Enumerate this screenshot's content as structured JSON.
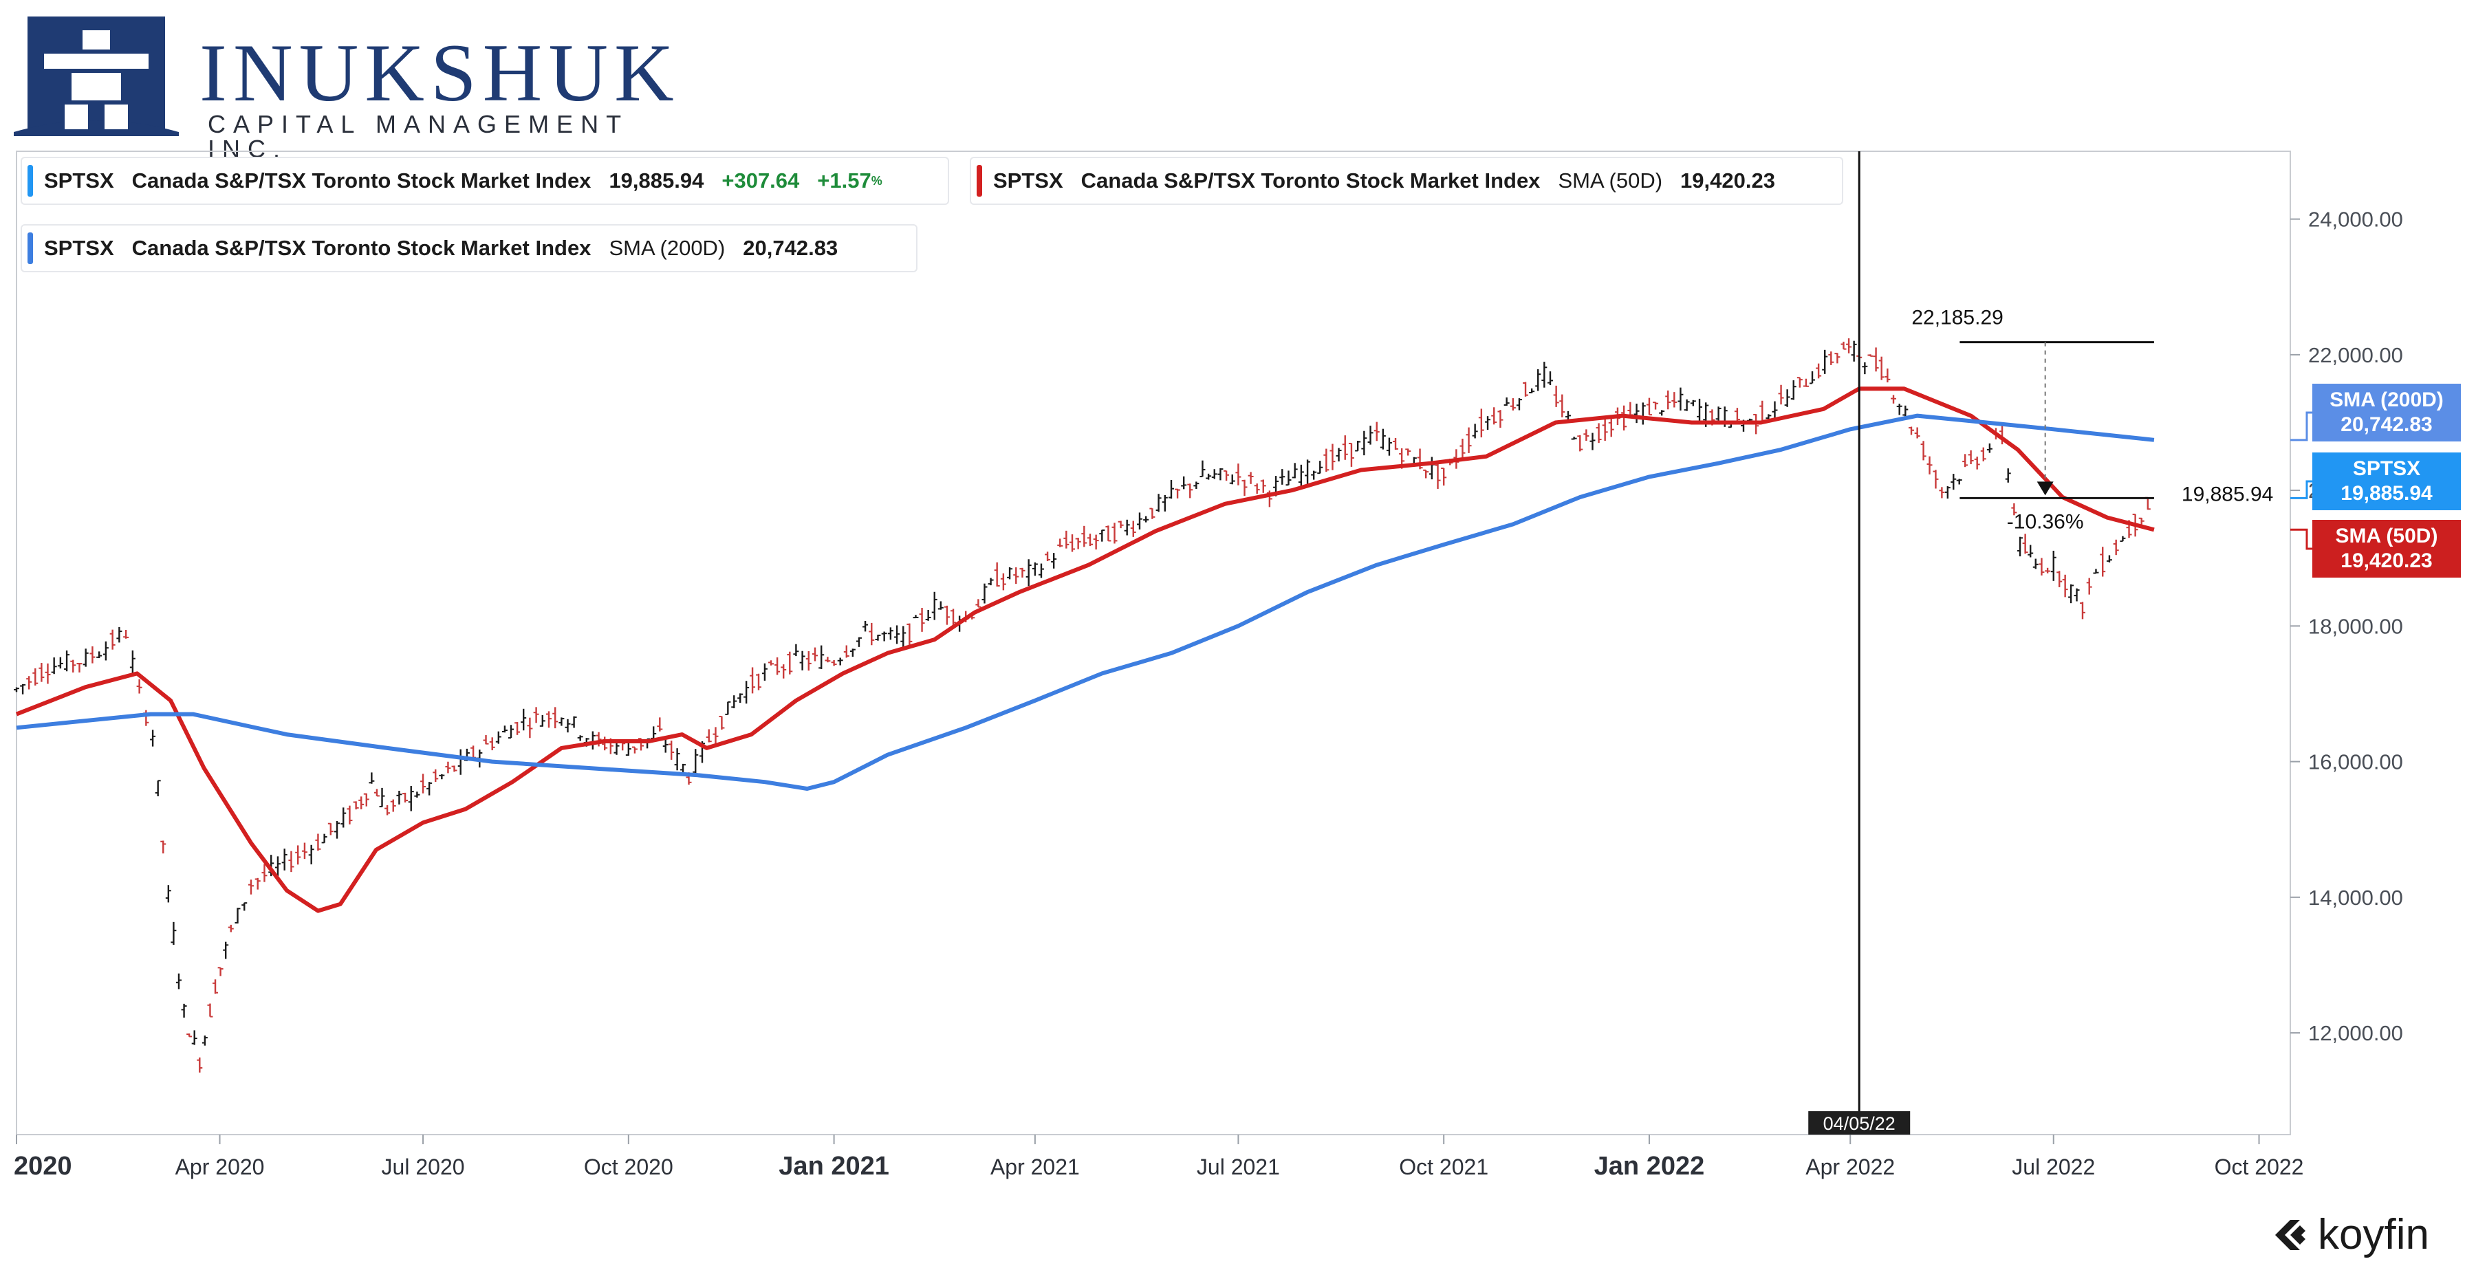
{
  "brand": {
    "name": "INUKSHUK",
    "subtitle": "CAPITAL MANAGEMENT INC."
  },
  "legend": {
    "price": {
      "ticker": "SPTSX",
      "name": "Canada S&P/TSX Toronto Stock Market Index",
      "value": "19,885.94",
      "change": "+307.64",
      "change_pct": "+1.57",
      "pct_sign": "%",
      "color": "#2196f3"
    },
    "sma50": {
      "ticker": "SPTSX",
      "name": "Canada S&P/TSX Toronto Stock Market Index",
      "label": "SMA (50D)",
      "value": "19,420.23",
      "color": "#d32020"
    },
    "sma200": {
      "ticker": "SPTSX",
      "name": "Canada S&P/TSX Toronto Stock Market Index",
      "label": "SMA (200D)",
      "value": "20,742.83",
      "color": "#3d7ee0"
    }
  },
  "tags": {
    "sma200": {
      "label": "SMA (200D)",
      "value": "20,742.83",
      "color": "#5b8ee6"
    },
    "price": {
      "label": "SPTSX",
      "value": "19,885.94",
      "color": "#2196f3"
    },
    "sma50": {
      "label": "SMA (50D)",
      "value": "19,420.23",
      "color": "#cc1f1f"
    }
  },
  "annotations": {
    "high_value": "22,185.29",
    "current_value": "19,885.94",
    "drawdown": "-10.36%",
    "crosshair_date": "04/05/22"
  },
  "footer": {
    "brand": "koyfin"
  },
  "chart_data": {
    "type": "line",
    "x_axis": {
      "start": "2020-01-01",
      "end": "2022-10-15",
      "ticks": [
        {
          "date": "2020-01-01",
          "label": "2020",
          "bold": true
        },
        {
          "date": "2020-04-01",
          "label": "Apr 2020"
        },
        {
          "date": "2020-07-01",
          "label": "Jul 2020"
        },
        {
          "date": "2020-10-01",
          "label": "Oct 2020"
        },
        {
          "date": "2021-01-01",
          "label": "Jan 2021",
          "bold": true
        },
        {
          "date": "2021-04-01",
          "label": "Apr 2021"
        },
        {
          "date": "2021-07-01",
          "label": "Jul 2021"
        },
        {
          "date": "2021-10-01",
          "label": "Oct 2021"
        },
        {
          "date": "2022-01-01",
          "label": "Jan 2022",
          "bold": true
        },
        {
          "date": "2022-04-01",
          "label": "Apr 2022"
        },
        {
          "date": "2022-07-01",
          "label": "Jul 2022"
        },
        {
          "date": "2022-10-01",
          "label": "Oct 2022"
        }
      ]
    },
    "y_axis": {
      "min": 10500,
      "max": 25000,
      "ticks": [
        {
          "value": 12000,
          "label": "12,000.00"
        },
        {
          "value": 14000,
          "label": "14,000.00"
        },
        {
          "value": 16000,
          "label": "16,000.00"
        },
        {
          "value": 18000,
          "label": "18,000.00"
        },
        {
          "value": 20000,
          "label": "20,000.00"
        },
        {
          "value": 22000,
          "label": "22,000.00"
        },
        {
          "value": 24000,
          "label": "24,000.00"
        }
      ]
    },
    "series": [
      {
        "name": "SPTSX",
        "style": "ohlc",
        "color": "#1a1a1a",
        "down_color": "#c93a3a",
        "points": [
          [
            "2020-01-01",
            17063
          ],
          [
            "2020-01-15",
            17400
          ],
          [
            "2020-02-01",
            17500
          ],
          [
            "2020-02-19",
            17900
          ],
          [
            "2020-02-25",
            17000
          ],
          [
            "2020-03-02",
            16400
          ],
          [
            "2020-03-09",
            14000
          ],
          [
            "2020-03-16",
            12300
          ],
          [
            "2020-03-23",
            11600
          ],
          [
            "2020-03-30",
            12700
          ],
          [
            "2020-04-06",
            13500
          ],
          [
            "2020-04-15",
            14200
          ],
          [
            "2020-04-30",
            14500
          ],
          [
            "2020-05-15",
            14800
          ],
          [
            "2020-06-01",
            15300
          ],
          [
            "2020-06-08",
            15700
          ],
          [
            "2020-06-15",
            15300
          ],
          [
            "2020-07-01",
            15600
          ],
          [
            "2020-07-15",
            15900
          ],
          [
            "2020-08-01",
            16300
          ],
          [
            "2020-08-15",
            16600
          ],
          [
            "2020-09-01",
            16700
          ],
          [
            "2020-09-15",
            16300
          ],
          [
            "2020-10-01",
            16200
          ],
          [
            "2020-10-15",
            16400
          ],
          [
            "2020-10-28",
            15800
          ],
          [
            "2020-11-09",
            16500
          ],
          [
            "2020-11-20",
            17000
          ],
          [
            "2020-12-01",
            17300
          ],
          [
            "2020-12-15",
            17500
          ],
          [
            "2021-01-01",
            17500
          ],
          [
            "2021-01-15",
            17900
          ],
          [
            "2021-02-01",
            17800
          ],
          [
            "2021-02-15",
            18300
          ],
          [
            "2021-03-01",
            18100
          ],
          [
            "2021-03-15",
            18700
          ],
          [
            "2021-04-01",
            18800
          ],
          [
            "2021-04-15",
            19200
          ],
          [
            "2021-05-01",
            19300
          ],
          [
            "2021-05-15",
            19500
          ],
          [
            "2021-06-01",
            19900
          ],
          [
            "2021-06-15",
            20200
          ],
          [
            "2021-07-01",
            20200
          ],
          [
            "2021-07-15",
            20000
          ],
          [
            "2021-08-01",
            20300
          ],
          [
            "2021-08-15",
            20500
          ],
          [
            "2021-09-01",
            20800
          ],
          [
            "2021-09-15",
            20500
          ],
          [
            "2021-10-01",
            20200
          ],
          [
            "2021-10-15",
            20900
          ],
          [
            "2021-11-01",
            21300
          ],
          [
            "2021-11-15",
            21700
          ],
          [
            "2021-12-01",
            20700
          ],
          [
            "2021-12-15",
            21000
          ],
          [
            "2022-01-01",
            21200
          ],
          [
            "2022-01-15",
            21300
          ],
          [
            "2022-02-01",
            21100
          ],
          [
            "2022-02-15",
            21000
          ],
          [
            "2022-03-01",
            21300
          ],
          [
            "2022-03-15",
            21700
          ],
          [
            "2022-03-29",
            22100
          ],
          [
            "2022-04-05",
            22000
          ],
          [
            "2022-04-15",
            21800
          ],
          [
            "2022-05-01",
            20800
          ],
          [
            "2022-05-12",
            20000
          ],
          [
            "2022-05-25",
            20400
          ],
          [
            "2022-06-08",
            20800
          ],
          [
            "2022-06-16",
            19200
          ],
          [
            "2022-06-23",
            18900
          ],
          [
            "2022-07-01",
            18900
          ],
          [
            "2022-07-14",
            18300
          ],
          [
            "2022-07-20",
            18800
          ],
          [
            "2022-08-01",
            19300
          ],
          [
            "2022-08-15",
            19885.94
          ]
        ]
      },
      {
        "name": "SMA (50D)",
        "style": "line",
        "color": "#d32020",
        "points": [
          [
            "2020-01-01",
            16700
          ],
          [
            "2020-02-01",
            17100
          ],
          [
            "2020-02-24",
            17300
          ],
          [
            "2020-03-10",
            16900
          ],
          [
            "2020-03-25",
            15900
          ],
          [
            "2020-04-15",
            14800
          ],
          [
            "2020-05-01",
            14100
          ],
          [
            "2020-05-15",
            13800
          ],
          [
            "2020-05-25",
            13900
          ],
          [
            "2020-06-10",
            14700
          ],
          [
            "2020-07-01",
            15100
          ],
          [
            "2020-07-20",
            15300
          ],
          [
            "2020-08-10",
            15700
          ],
          [
            "2020-09-01",
            16200
          ],
          [
            "2020-09-20",
            16300
          ],
          [
            "2020-10-10",
            16300
          ],
          [
            "2020-10-25",
            16400
          ],
          [
            "2020-11-05",
            16200
          ],
          [
            "2020-11-25",
            16400
          ],
          [
            "2020-12-15",
            16900
          ],
          [
            "2021-01-05",
            17300
          ],
          [
            "2021-01-25",
            17600
          ],
          [
            "2021-02-15",
            17800
          ],
          [
            "2021-03-05",
            18200
          ],
          [
            "2021-03-25",
            18500
          ],
          [
            "2021-04-25",
            18900
          ],
          [
            "2021-05-25",
            19400
          ],
          [
            "2021-06-25",
            19800
          ],
          [
            "2021-07-25",
            20000
          ],
          [
            "2021-08-25",
            20300
          ],
          [
            "2021-09-25",
            20400
          ],
          [
            "2021-10-20",
            20500
          ],
          [
            "2021-11-20",
            21000
          ],
          [
            "2021-12-20",
            21100
          ],
          [
            "2022-01-20",
            21000
          ],
          [
            "2022-02-20",
            21000
          ],
          [
            "2022-03-20",
            21200
          ],
          [
            "2022-04-05",
            21500
          ],
          [
            "2022-04-25",
            21500
          ],
          [
            "2022-05-25",
            21100
          ],
          [
            "2022-06-15",
            20600
          ],
          [
            "2022-07-05",
            19900
          ],
          [
            "2022-07-25",
            19600
          ],
          [
            "2022-08-15",
            19420.23
          ]
        ]
      },
      {
        "name": "SMA (200D)",
        "style": "line",
        "color": "#3d7ee0",
        "points": [
          [
            "2020-01-01",
            16500
          ],
          [
            "2020-03-01",
            16700
          ],
          [
            "2020-03-20",
            16700
          ],
          [
            "2020-05-01",
            16400
          ],
          [
            "2020-06-15",
            16200
          ],
          [
            "2020-08-01",
            16000
          ],
          [
            "2020-09-15",
            15900
          ],
          [
            "2020-11-01",
            15800
          ],
          [
            "2020-12-01",
            15700
          ],
          [
            "2020-12-20",
            15600
          ],
          [
            "2021-01-01",
            15700
          ],
          [
            "2021-01-25",
            16100
          ],
          [
            "2021-03-01",
            16500
          ],
          [
            "2021-04-01",
            16900
          ],
          [
            "2021-05-01",
            17300
          ],
          [
            "2021-06-01",
            17600
          ],
          [
            "2021-07-01",
            18000
          ],
          [
            "2021-08-01",
            18500
          ],
          [
            "2021-09-01",
            18900
          ],
          [
            "2021-10-01",
            19200
          ],
          [
            "2021-11-01",
            19500
          ],
          [
            "2021-12-01",
            19900
          ],
          [
            "2022-01-01",
            20200
          ],
          [
            "2022-02-01",
            20400
          ],
          [
            "2022-03-01",
            20600
          ],
          [
            "2022-04-01",
            20900
          ],
          [
            "2022-05-01",
            21100
          ],
          [
            "2022-06-01",
            21000
          ],
          [
            "2022-07-01",
            20900
          ],
          [
            "2022-08-15",
            20742.83
          ]
        ]
      }
    ],
    "crosshair": {
      "date": "2022-04-05"
    },
    "measure": {
      "from_date": "2022-05-20",
      "to_date": "2022-08-15",
      "high": 22185.29,
      "current": 19885.94,
      "pct": -10.36
    }
  }
}
